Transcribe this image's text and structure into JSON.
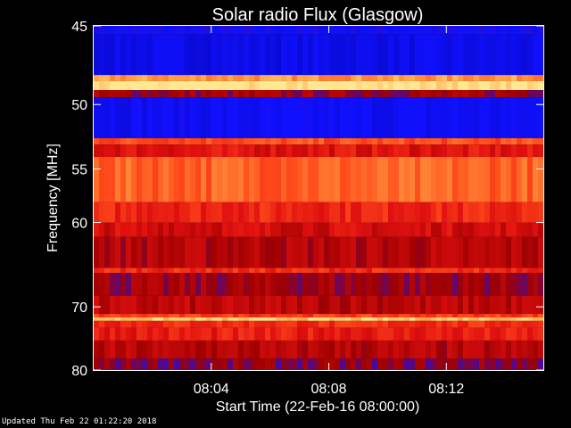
{
  "chart_data": {
    "type": "heatmap",
    "title": "Solar radio Flux (Glasgow)",
    "xlabel": "Start Time (22-Feb-16 08:00:00)",
    "ylabel": "Frequency [MHz]",
    "x_range_minutes": [
      0,
      15.3
    ],
    "x_ticks": [
      {
        "minute": 4,
        "label": "08:04"
      },
      {
        "minute": 8,
        "label": "08:08"
      },
      {
        "minute": 12,
        "label": "08:12"
      }
    ],
    "ylim": [
      45,
      80
    ],
    "y_ticks": [
      {
        "value": 45,
        "label": "45"
      },
      {
        "value": 50,
        "label": "50"
      },
      {
        "value": 55,
        "label": "55"
      },
      {
        "value": 60,
        "label": "60"
      },
      {
        "value": 70,
        "label": "70"
      },
      {
        "value": 80,
        "label": "80"
      }
    ],
    "y_scale": "reciprocal",
    "colormap": [
      "#000090",
      "#1010ff",
      "#a00000",
      "#e01010",
      "#ff4a1a",
      "#ff9a40",
      "#ffe890"
    ],
    "bands": [
      {
        "f0": 45.0,
        "f1": 45.5,
        "level": 1
      },
      {
        "f0": 45.5,
        "f1": 48.0,
        "level": 0.8
      },
      {
        "f0": 48.0,
        "f1": 48.4,
        "level": 5
      },
      {
        "f0": 48.4,
        "f1": 49.0,
        "level": 6
      },
      {
        "f0": 49.0,
        "f1": 49.5,
        "level": 2
      },
      {
        "f0": 49.5,
        "f1": 52.5,
        "level": 0.9
      },
      {
        "f0": 52.5,
        "f1": 53.0,
        "level": 4
      },
      {
        "f0": 53.0,
        "f1": 54.0,
        "level": 3
      },
      {
        "f0": 54.0,
        "f1": 58.0,
        "level": 4.3
      },
      {
        "f0": 58.0,
        "f1": 60.0,
        "level": 3.4
      },
      {
        "f0": 60.0,
        "f1": 61.5,
        "level": 2.8
      },
      {
        "f0": 61.5,
        "f1": 65.0,
        "level": 2.3
      },
      {
        "f0": 65.0,
        "f1": 65.6,
        "level": 3.5
      },
      {
        "f0": 65.6,
        "f1": 68.5,
        "level": 2.0
      },
      {
        "f0": 68.5,
        "f1": 71.0,
        "level": 2.4
      },
      {
        "f0": 71.0,
        "f1": 71.5,
        "level": 3.8
      },
      {
        "f0": 71.5,
        "f1": 72.0,
        "level": 5.5
      },
      {
        "f0": 72.0,
        "f1": 73.0,
        "level": 3.5
      },
      {
        "f0": 73.0,
        "f1": 75.0,
        "level": 3.2
      },
      {
        "f0": 75.0,
        "f1": 78.0,
        "level": 2.3
      },
      {
        "f0": 78.0,
        "f1": 80.0,
        "level": 1.8
      }
    ]
  },
  "footer": {
    "updated": "Updated Thu Feb 22 01:22:20 2018"
  }
}
